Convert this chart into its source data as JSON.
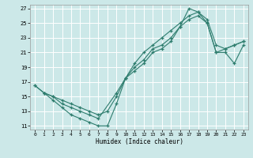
{
  "xlabel": "Humidex (Indice chaleur)",
  "background_color": "#cce8e8",
  "grid_color": "#ffffff",
  "line_color": "#2e7d6e",
  "xlim": [
    -0.5,
    23.5
  ],
  "ylim": [
    10.5,
    27.5
  ],
  "xticks": [
    0,
    1,
    2,
    3,
    4,
    5,
    6,
    7,
    8,
    9,
    10,
    11,
    12,
    13,
    14,
    15,
    16,
    17,
    18,
    19,
    20,
    21,
    22,
    23
  ],
  "yticks": [
    11,
    13,
    15,
    17,
    19,
    21,
    23,
    25,
    27
  ],
  "line1_x": [
    0,
    1,
    2,
    3,
    4,
    5,
    6,
    7,
    9,
    10,
    11,
    12,
    13,
    14,
    15,
    16,
    17,
    18,
    19,
    20,
    21,
    22,
    23
  ],
  "line1_y": [
    16.5,
    15.5,
    15.0,
    14.0,
    13.5,
    13.0,
    12.5,
    12.0,
    15.5,
    17.5,
    19.0,
    20.0,
    21.5,
    22.0,
    23.0,
    24.5,
    25.5,
    26.0,
    25.0,
    21.0,
    21.5,
    22.0,
    22.5
  ],
  "line2_x": [
    0,
    1,
    2,
    3,
    4,
    5,
    6,
    7,
    8,
    9,
    10,
    11,
    12,
    13,
    14,
    15,
    16,
    17,
    18,
    19,
    20,
    21,
    22,
    23
  ],
  "line2_y": [
    16.5,
    15.5,
    14.5,
    13.5,
    12.5,
    12.0,
    11.5,
    11.0,
    11.0,
    14.0,
    17.5,
    18.5,
    19.5,
    21.0,
    21.5,
    22.5,
    24.5,
    27.0,
    26.5,
    25.0,
    21.0,
    21.0,
    19.5,
    22.0
  ],
  "line3_x": [
    1,
    2,
    3,
    4,
    5,
    6,
    7,
    8,
    9,
    10,
    11,
    12,
    13,
    14,
    15,
    16,
    17,
    18,
    19,
    20,
    21,
    22,
    23
  ],
  "line3_y": [
    15.5,
    15.0,
    14.5,
    14.0,
    13.5,
    13.0,
    12.5,
    13.0,
    15.0,
    17.5,
    19.5,
    21.0,
    22.0,
    23.0,
    24.0,
    25.0,
    26.0,
    26.5,
    25.5,
    22.0,
    21.5,
    22.0,
    22.5
  ]
}
